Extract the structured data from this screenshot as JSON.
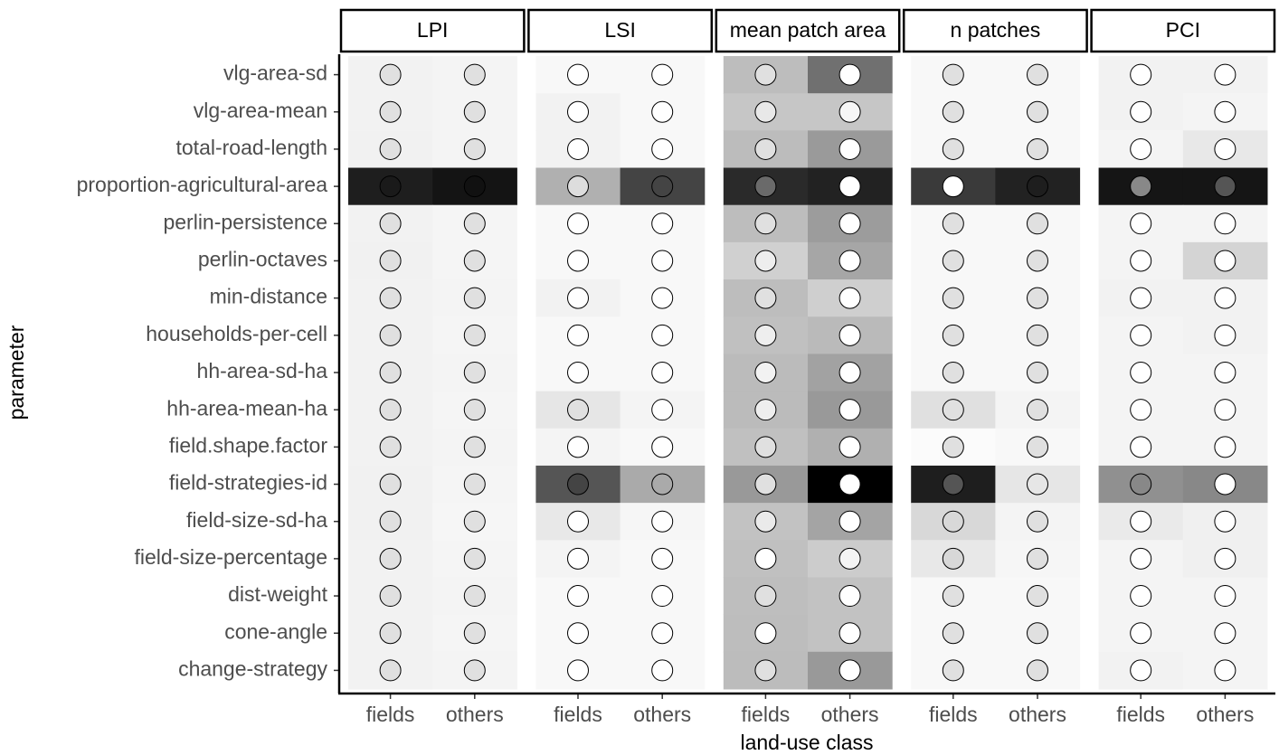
{
  "chart_data": {
    "type": "heatmap",
    "xlabel": "land-use class",
    "ylabel": "parameter",
    "categories": [
      "fields",
      "others"
    ],
    "rows": [
      "vlg-area-sd",
      "vlg-area-mean",
      "total-road-length",
      "proportion-agricultural-area",
      "perlin-persistence",
      "perlin-octaves",
      "min-distance",
      "households-per-cell",
      "hh-area-sd-ha",
      "hh-area-mean-ha",
      "field.shape.factor",
      "field-strategies-id",
      "field-size-sd-ha",
      "field-size-percentage",
      "dist-weight",
      "cone-angle",
      "change-strategy"
    ],
    "panels": [
      {
        "name": "LPI",
        "tile_colors": [
          [
            "#f2f2f2",
            "#f4f4f4"
          ],
          [
            "#f2f2f2",
            "#f4f4f4"
          ],
          [
            "#f1f1f1",
            "#f4f4f4"
          ],
          [
            "#1e1e1e",
            "#141414"
          ],
          [
            "#f2f2f2",
            "#f5f5f5"
          ],
          [
            "#f1f1f1",
            "#f5f5f5"
          ],
          [
            "#f2f2f2",
            "#f4f4f4"
          ],
          [
            "#f2f2f2",
            "#f5f5f5"
          ],
          [
            "#f2f2f2",
            "#f4f4f4"
          ],
          [
            "#f2f2f2",
            "#f5f5f5"
          ],
          [
            "#f2f2f2",
            "#f4f4f4"
          ],
          [
            "#f1f1f1",
            "#f5f5f5"
          ],
          [
            "#f1f1f1",
            "#f6f6f6"
          ],
          [
            "#f2f2f2",
            "#f5f5f5"
          ],
          [
            "#f2f2f2",
            "#f4f4f4"
          ],
          [
            "#f2f2f2",
            "#f5f5f5"
          ],
          [
            "#f2f2f2",
            "#f4f4f4"
          ]
        ],
        "point_colors": [
          [
            "#e0e0e0",
            "#e0e0e0"
          ],
          [
            "#e0e0e0",
            "#e0e0e0"
          ],
          [
            "#e0e0e0",
            "#e0e0e0"
          ],
          [
            "#1a1a1a",
            "#111111"
          ],
          [
            "#e0e0e0",
            "#e0e0e0"
          ],
          [
            "#e0e0e0",
            "#e0e0e0"
          ],
          [
            "#e0e0e0",
            "#e0e0e0"
          ],
          [
            "#e0e0e0",
            "#e0e0e0"
          ],
          [
            "#e0e0e0",
            "#e0e0e0"
          ],
          [
            "#e0e0e0",
            "#e0e0e0"
          ],
          [
            "#e0e0e0",
            "#e0e0e0"
          ],
          [
            "#e0e0e0",
            "#e0e0e0"
          ],
          [
            "#e0e0e0",
            "#e0e0e0"
          ],
          [
            "#e0e0e0",
            "#e0e0e0"
          ],
          [
            "#e0e0e0",
            "#e0e0e0"
          ],
          [
            "#e0e0e0",
            "#e0e0e0"
          ],
          [
            "#e0e0e0",
            "#e0e0e0"
          ]
        ]
      },
      {
        "name": "LSI",
        "tile_colors": [
          [
            "#f8f8f8",
            "#f8f8f8"
          ],
          [
            "#f2f2f2",
            "#f8f8f8"
          ],
          [
            "#f2f2f2",
            "#f8f8f8"
          ],
          [
            "#b0b0b0",
            "#444444"
          ],
          [
            "#f8f8f8",
            "#f8f8f8"
          ],
          [
            "#f8f8f8",
            "#f8f8f8"
          ],
          [
            "#f2f2f2",
            "#f8f8f8"
          ],
          [
            "#f8f8f8",
            "#f8f8f8"
          ],
          [
            "#f8f8f8",
            "#f8f8f8"
          ],
          [
            "#e6e6e6",
            "#f4f4f4"
          ],
          [
            "#f4f4f4",
            "#f8f8f8"
          ],
          [
            "#555555",
            "#aaaaaa"
          ],
          [
            "#e8e8e8",
            "#f6f6f6"
          ],
          [
            "#f4f4f4",
            "#f8f8f8"
          ],
          [
            "#f8f8f8",
            "#f8f8f8"
          ],
          [
            "#f8f8f8",
            "#f8f8f8"
          ],
          [
            "#f8f8f8",
            "#f8f8f8"
          ]
        ],
        "point_colors": [
          [
            "#ffffff",
            "#ffffff"
          ],
          [
            "#ffffff",
            "#ffffff"
          ],
          [
            "#ffffff",
            "#ffffff"
          ],
          [
            "#dddddd",
            "#444444"
          ],
          [
            "#ffffff",
            "#ffffff"
          ],
          [
            "#ffffff",
            "#ffffff"
          ],
          [
            "#ffffff",
            "#ffffff"
          ],
          [
            "#ffffff",
            "#ffffff"
          ],
          [
            "#ffffff",
            "#ffffff"
          ],
          [
            "#e0e0e0",
            "#ffffff"
          ],
          [
            "#ffffff",
            "#ffffff"
          ],
          [
            "#444444",
            "#aaaaaa"
          ],
          [
            "#ffffff",
            "#ffffff"
          ],
          [
            "#ffffff",
            "#ffffff"
          ],
          [
            "#ffffff",
            "#ffffff"
          ],
          [
            "#ffffff",
            "#ffffff"
          ],
          [
            "#ffffff",
            "#ffffff"
          ]
        ]
      },
      {
        "name": "mean patch area",
        "tile_colors": [
          [
            "#bdbdbd",
            "#707070"
          ],
          [
            "#c6c6c6",
            "#c6c6c6"
          ],
          [
            "#bcbcbc",
            "#9a9a9a"
          ],
          [
            "#2a2a2a",
            "#222222"
          ],
          [
            "#bdbdbd",
            "#9c9c9c"
          ],
          [
            "#d0d0d0",
            "#a6a6a6"
          ],
          [
            "#bdbdbd",
            "#cfcfcf"
          ],
          [
            "#c0c0c0",
            "#bababa"
          ],
          [
            "#bbbbbb",
            "#a2a2a2"
          ],
          [
            "#bbbbbb",
            "#999999"
          ],
          [
            "#c0c0c0",
            "#b0b0b0"
          ],
          [
            "#999999",
            "#000000"
          ],
          [
            "#c2c2c2",
            "#a4a4a4"
          ],
          [
            "#c0c0c0",
            "#cccccc"
          ],
          [
            "#bebebe",
            "#c2c2c2"
          ],
          [
            "#bdbdbd",
            "#c2c2c2"
          ],
          [
            "#bcbcbc",
            "#999999"
          ]
        ],
        "point_colors": [
          [
            "#e0e0e0",
            "#ffffff"
          ],
          [
            "#e8e8e8",
            "#f6f6f6"
          ],
          [
            "#e0e0e0",
            "#ffffff"
          ],
          [
            "#6a6a6a",
            "#ffffff"
          ],
          [
            "#e0e0e0",
            "#ffffff"
          ],
          [
            "#eeeeee",
            "#ffffff"
          ],
          [
            "#e0e0e0",
            "#ffffff"
          ],
          [
            "#eeeeee",
            "#ffffff"
          ],
          [
            "#f2f2f2",
            "#ffffff"
          ],
          [
            "#eeeeee",
            "#ffffff"
          ],
          [
            "#e0e0e0",
            "#ffffff"
          ],
          [
            "#e0e0e0",
            "#ffffff"
          ],
          [
            "#eaeaea",
            "#ffffff"
          ],
          [
            "#ffffff",
            "#f4f4f4"
          ],
          [
            "#e0e0e0",
            "#ffffff"
          ],
          [
            "#ffffff",
            "#ffffff"
          ],
          [
            "#e0e0e0",
            "#ffffff"
          ]
        ]
      },
      {
        "name": "n patches",
        "tile_colors": [
          [
            "#f8f8f8",
            "#f8f8f8"
          ],
          [
            "#f8f8f8",
            "#f8f8f8"
          ],
          [
            "#f8f8f8",
            "#f8f8f8"
          ],
          [
            "#3a3a3a",
            "#222222"
          ],
          [
            "#f8f8f8",
            "#f8f8f8"
          ],
          [
            "#f8f8f8",
            "#f8f8f8"
          ],
          [
            "#f8f8f8",
            "#f8f8f8"
          ],
          [
            "#f8f8f8",
            "#f8f8f8"
          ],
          [
            "#f8f8f8",
            "#f8f8f8"
          ],
          [
            "#e0e0e0",
            "#f4f4f4"
          ],
          [
            "#fbfbfb",
            "#f8f8f8"
          ],
          [
            "#1e1e1e",
            "#e6e6e6"
          ],
          [
            "#d8d8d8",
            "#f4f4f4"
          ],
          [
            "#e8e8e8",
            "#f6f6f6"
          ],
          [
            "#f8f8f8",
            "#f8f8f8"
          ],
          [
            "#f8f8f8",
            "#f8f8f8"
          ],
          [
            "#f8f8f8",
            "#f8f8f8"
          ]
        ],
        "point_colors": [
          [
            "#e0e0e0",
            "#e0e0e0"
          ],
          [
            "#e0e0e0",
            "#e0e0e0"
          ],
          [
            "#e0e0e0",
            "#e0e0e0"
          ],
          [
            "#ffffff",
            "#1e1e1e"
          ],
          [
            "#e0e0e0",
            "#e0e0e0"
          ],
          [
            "#e0e0e0",
            "#e0e0e0"
          ],
          [
            "#e0e0e0",
            "#e0e0e0"
          ],
          [
            "#e0e0e0",
            "#e0e0e0"
          ],
          [
            "#e0e0e0",
            "#e0e0e0"
          ],
          [
            "#e0e0e0",
            "#e0e0e0"
          ],
          [
            "#e0e0e0",
            "#e0e0e0"
          ],
          [
            "#555555",
            "#e6e6e6"
          ],
          [
            "#d8d8d8",
            "#e0e0e0"
          ],
          [
            "#d8d8d8",
            "#e0e0e0"
          ],
          [
            "#e0e0e0",
            "#e0e0e0"
          ],
          [
            "#e0e0e0",
            "#e0e0e0"
          ],
          [
            "#e0e0e0",
            "#e0e0e0"
          ]
        ]
      },
      {
        "name": "PCI",
        "tile_colors": [
          [
            "#f2f2f2",
            "#f2f2f2"
          ],
          [
            "#f2f2f2",
            "#f4f4f4"
          ],
          [
            "#f4f4f4",
            "#e8e8e8"
          ],
          [
            "#151515",
            "#151515"
          ],
          [
            "#f4f4f4",
            "#f4f4f4"
          ],
          [
            "#f4f4f4",
            "#d4d4d4"
          ],
          [
            "#f2f2f2",
            "#f2f2f2"
          ],
          [
            "#f4f4f4",
            "#f2f2f2"
          ],
          [
            "#f4f4f4",
            "#f4f4f4"
          ],
          [
            "#f4f4f4",
            "#f4f4f4"
          ],
          [
            "#f4f4f4",
            "#f4f4f4"
          ],
          [
            "#909090",
            "#888888"
          ],
          [
            "#eaeaea",
            "#f0f0f0"
          ],
          [
            "#f4f4f4",
            "#f0f0f0"
          ],
          [
            "#f4f4f4",
            "#f4f4f4"
          ],
          [
            "#f4f4f4",
            "#f4f4f4"
          ],
          [
            "#f2f2f2",
            "#f4f4f4"
          ]
        ],
        "point_colors": [
          [
            "#ffffff",
            "#ffffff"
          ],
          [
            "#ffffff",
            "#ffffff"
          ],
          [
            "#ffffff",
            "#ffffff"
          ],
          [
            "#888888",
            "#555555"
          ],
          [
            "#ffffff",
            "#ffffff"
          ],
          [
            "#ffffff",
            "#ffffff"
          ],
          [
            "#ffffff",
            "#ffffff"
          ],
          [
            "#ffffff",
            "#ffffff"
          ],
          [
            "#ffffff",
            "#ffffff"
          ],
          [
            "#ffffff",
            "#ffffff"
          ],
          [
            "#ffffff",
            "#ffffff"
          ],
          [
            "#888888",
            "#ffffff"
          ],
          [
            "#ffffff",
            "#ffffff"
          ],
          [
            "#ffffff",
            "#ffffff"
          ],
          [
            "#ffffff",
            "#ffffff"
          ],
          [
            "#ffffff",
            "#ffffff"
          ],
          [
            "#ffffff",
            "#ffffff"
          ]
        ]
      }
    ]
  }
}
